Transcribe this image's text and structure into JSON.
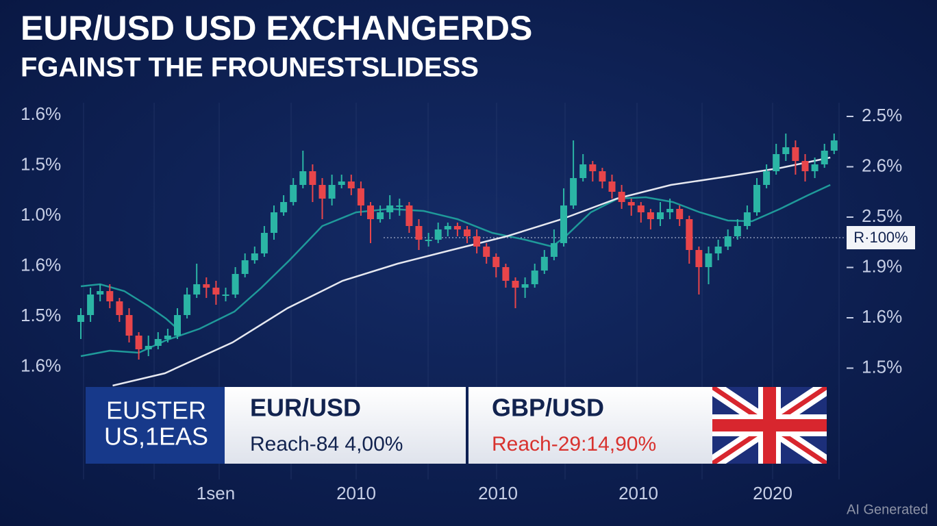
{
  "chart_data": {
    "type": "candlestick",
    "title": "EUR/USD USD EXCHANGERDS",
    "subtitle": "FGAINST  THE FROUNESTSLIDESS",
    "left_labels": [
      "1.6%",
      "1.5%",
      "1.0%",
      "1.6%",
      "1.5%",
      "1.6%"
    ],
    "right_labels": [
      "2.5%",
      "2.6%",
      "2.5%",
      "1.9%",
      "1.6%",
      "1.5%"
    ],
    "x_labels": [
      "1sen",
      "2010",
      "2010",
      "2010",
      "2020"
    ],
    "ylim": [
      0,
      420
    ],
    "up_color": "#2bb5a5",
    "down_color": "#e8454a",
    "open": [
      95,
      105,
      135,
      140,
      125,
      105,
      75,
      55,
      60,
      70,
      75,
      105,
      135,
      150,
      145,
      135,
      135,
      165,
      185,
      195,
      225,
      255,
      270,
      295,
      315,
      295,
      275,
      295,
      300,
      290,
      265,
      245,
      255,
      265,
      265,
      235,
      215,
      215,
      230,
      235,
      230,
      220,
      205,
      190,
      175,
      155,
      145,
      150,
      170,
      190,
      210,
      265,
      305,
      325,
      315,
      300,
      285,
      270,
      265,
      255,
      245,
      255,
      260,
      245,
      200,
      175,
      195,
      205,
      220,
      235,
      255,
      295,
      315,
      340,
      350,
      330,
      315,
      325,
      345
    ],
    "high": [
      115,
      145,
      150,
      150,
      130,
      115,
      80,
      75,
      80,
      85,
      115,
      145,
      180,
      160,
      155,
      145,
      175,
      195,
      205,
      235,
      265,
      280,
      305,
      345,
      325,
      305,
      310,
      310,
      310,
      300,
      270,
      265,
      280,
      275,
      270,
      245,
      225,
      240,
      240,
      240,
      235,
      230,
      210,
      195,
      180,
      160,
      160,
      180,
      200,
      230,
      290,
      360,
      340,
      330,
      320,
      310,
      295,
      275,
      270,
      260,
      270,
      275,
      265,
      250,
      205,
      205,
      215,
      230,
      245,
      265,
      305,
      325,
      355,
      370,
      360,
      340,
      335,
      355,
      370
    ],
    "low": [
      70,
      95,
      125,
      115,
      95,
      65,
      40,
      45,
      55,
      65,
      70,
      100,
      130,
      130,
      120,
      125,
      130,
      160,
      180,
      190,
      215,
      250,
      265,
      290,
      270,
      245,
      265,
      290,
      280,
      250,
      210,
      240,
      245,
      250,
      225,
      200,
      205,
      210,
      220,
      220,
      210,
      195,
      180,
      160,
      145,
      115,
      130,
      145,
      165,
      185,
      205,
      260,
      300,
      300,
      290,
      275,
      260,
      250,
      240,
      230,
      235,
      245,
      235,
      180,
      135,
      150,
      185,
      200,
      215,
      230,
      250,
      290,
      310,
      330,
      310,
      300,
      305,
      320,
      340
    ],
    "close": [
      105,
      135,
      140,
      125,
      105,
      75,
      55,
      60,
      70,
      75,
      105,
      135,
      150,
      145,
      135,
      135,
      165,
      185,
      195,
      225,
      255,
      270,
      295,
      315,
      295,
      275,
      295,
      300,
      290,
      265,
      245,
      255,
      265,
      265,
      235,
      215,
      215,
      230,
      235,
      230,
      220,
      205,
      190,
      175,
      155,
      145,
      150,
      170,
      190,
      210,
      265,
      305,
      325,
      315,
      300,
      285,
      270,
      265,
      255,
      245,
      255,
      260,
      245,
      200,
      175,
      195,
      205,
      220,
      235,
      255,
      295,
      315,
      340,
      350,
      330,
      315,
      325,
      345,
      360
    ],
    "overlays": [
      {
        "color": "#1f9a9a",
        "x": [
          0,
          3,
          6,
          8.8,
          12.3,
          15.9,
          18.7,
          21.6,
          25,
          28.5,
          32,
          35.5,
          39,
          42.6,
          46,
          48.8,
          50.2,
          52.8,
          55.6,
          58.5,
          61.3,
          64.1,
          67,
          69.5,
          72.4,
          75.3,
          77.6
        ],
        "values": [
          45,
          53,
          50,
          68,
          85,
          110,
          145,
          185,
          235,
          255,
          260,
          257,
          245,
          225,
          215,
          205,
          220,
          255,
          275,
          277,
          270,
          255,
          243,
          242,
          260,
          280,
          295
        ]
      },
      {
        "color": "#1f9a9a",
        "x": [
          0,
          2,
          4.5,
          7,
          8.8,
          10
        ],
        "values": [
          147,
          150,
          140,
          118,
          100,
          85
        ]
      },
      {
        "color": "#e6e8f0",
        "x": [
          3.3,
          8.7,
          15.7,
          21.4,
          27.1,
          32.8,
          38.4,
          44.1,
          49.8,
          55.5,
          61.1,
          66.8,
          72.5,
          77.6
        ],
        "values": [
          2,
          20,
          65,
          115,
          155,
          180,
          200,
          220,
          245,
          275,
          295,
          307,
          320,
          335
        ]
      }
    ],
    "ref_line": 218,
    "ref_label": "R·100%",
    "panel": {
      "badge": [
        "EUSTER",
        "US,1EAS"
      ],
      "cards": [
        {
          "title": "EUR/USD",
          "text": "Reach-84 4,00%"
        },
        {
          "title": "GBP/USD",
          "text": "Reach-29:14,90%"
        }
      ]
    },
    "watermark": "AI Generated"
  }
}
